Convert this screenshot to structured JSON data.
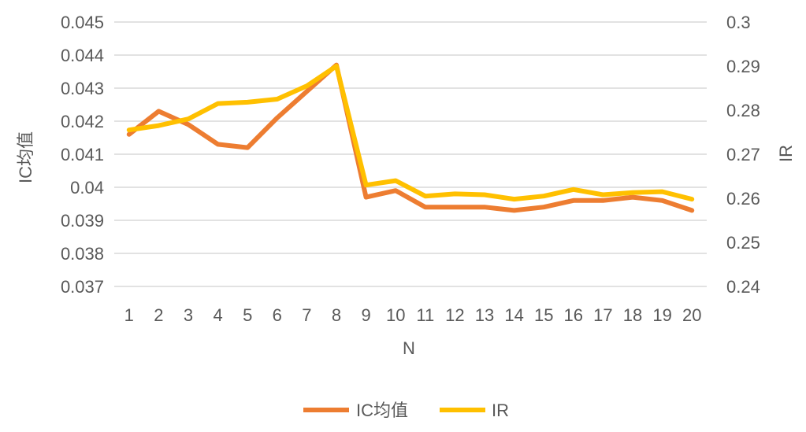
{
  "chart_data": {
    "type": "line",
    "x": [
      1,
      2,
      3,
      4,
      5,
      6,
      7,
      8,
      9,
      10,
      11,
      12,
      13,
      14,
      15,
      16,
      17,
      18,
      19,
      20
    ],
    "xlabel": "N",
    "ylabel_left": "IC均值",
    "ylabel_right": "IR",
    "ylim_left": [
      0.037,
      0.045
    ],
    "yticks_left": [
      "0.045",
      "0.044",
      "0.043",
      "0.042",
      "0.041",
      "0.04",
      "0.039",
      "0.038",
      "0.037"
    ],
    "ylim_right": [
      0.24,
      0.3
    ],
    "yticks_right": [
      "0.3",
      "0.29",
      "0.28",
      "0.27",
      "0.26",
      "0.25",
      "0.24"
    ],
    "grid": true,
    "legend_position": "bottom",
    "series": [
      {
        "name": "IC均值",
        "axis": "left",
        "color": "#ED7D31",
        "values": [
          0.0416,
          0.0423,
          0.0419,
          0.0413,
          0.0412,
          0.0421,
          0.0429,
          0.0437,
          0.0397,
          0.0399,
          0.0394,
          0.0394,
          0.0394,
          0.0393,
          0.0394,
          0.0396,
          0.0396,
          0.0397,
          0.0396,
          0.0393
        ]
      },
      {
        "name": "IR",
        "axis": "right",
        "color": "#FFC000",
        "values": [
          0.2755,
          0.2765,
          0.278,
          0.2815,
          0.2818,
          0.2825,
          0.2855,
          0.29,
          0.263,
          0.264,
          0.2605,
          0.261,
          0.2608,
          0.2598,
          0.2605,
          0.262,
          0.2608,
          0.2613,
          0.2615,
          0.2598
        ]
      }
    ]
  }
}
